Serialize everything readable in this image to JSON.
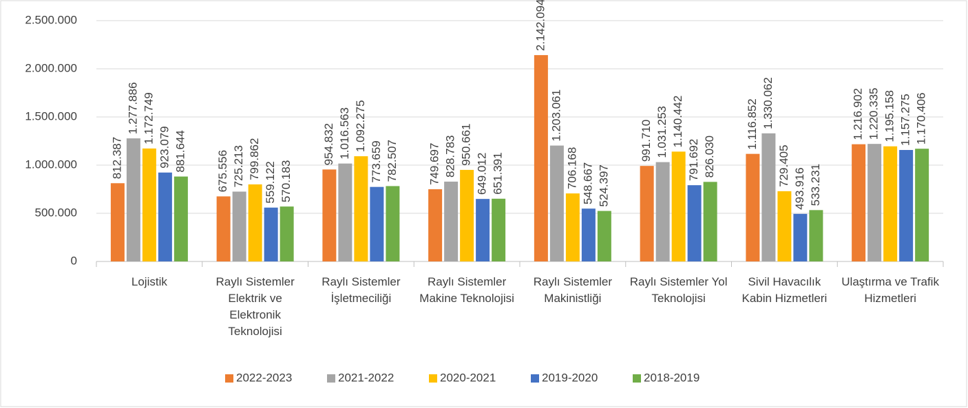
{
  "chart_data": {
    "type": "bar",
    "categories": [
      "Lojistik",
      "Raylı Sistemler Elektrik ve Elektronik Teknolojisi",
      "Raylı Sistemler İşletmeciliği",
      "Raylı Sistemler Makine Teknolojisi",
      "Raylı Sistemler Makinistliği",
      "Raylı Sistemler Yol Teknolojisi",
      "Sivil Havacılık Kabin Hizmetleri",
      "Ulaştırma ve Trafik Hizmetleri"
    ],
    "series": [
      {
        "name": "2022-2023",
        "color": "#ed7d31",
        "values": [
          812387,
          675556,
          954832,
          749697,
          2142094,
          991710,
          1116852,
          1216902
        ],
        "value_labels": [
          "812.387",
          "675.556",
          "954.832",
          "749.697",
          "2.142.094",
          "991.710",
          "1.116.852",
          "1.216.902"
        ]
      },
      {
        "name": "2021-2022",
        "color": "#a5a5a5",
        "values": [
          1277886,
          725213,
          1016563,
          828783,
          1203061,
          1031253,
          1330062,
          1220335
        ],
        "value_labels": [
          "1.277.886",
          "725.213",
          "1.016.563",
          "828.783",
          "1.203.061",
          "1.031.253",
          "1.330.062",
          "1.220.335"
        ]
      },
      {
        "name": "2020-2021",
        "color": "#ffc000",
        "values": [
          1172749,
          799862,
          1092275,
          950661,
          706168,
          1140442,
          729405,
          1195158
        ],
        "value_labels": [
          "1.172.749",
          "799.862",
          "1.092.275",
          "950.661",
          "706.168",
          "1.140.442",
          "729.405",
          "1.195.158"
        ]
      },
      {
        "name": "2019-2020",
        "color": "#4472c4",
        "values": [
          923079,
          559122,
          773659,
          649012,
          548667,
          791692,
          493916,
          1157275
        ],
        "value_labels": [
          "923.079",
          "559.122",
          "773.659",
          "649.012",
          "548.667",
          "791.692",
          "493.916",
          "1.157.275"
        ]
      },
      {
        "name": "2018-2019",
        "color": "#70ad47",
        "values": [
          881644,
          570183,
          782507,
          651391,
          524397,
          826030,
          533231,
          1170406
        ],
        "value_labels": [
          "881.644",
          "570.183",
          "782.507",
          "651.391",
          "524.397",
          "826.030",
          "533.231",
          "1.170.406"
        ]
      }
    ],
    "ylim": [
      0,
      2500000
    ],
    "yticks": [
      0,
      {
        "value": 500000,
        "label": "500.000"
      },
      {
        "value": 1000000,
        "label": "1.000.000"
      },
      {
        "value": 1500000,
        "label": "1.500.000"
      },
      {
        "value": 2000000,
        "label": "2.000.000"
      },
      {
        "value": 2500000,
        "label": "2.500.000"
      }
    ],
    "grid": true,
    "legend": "bottom"
  }
}
